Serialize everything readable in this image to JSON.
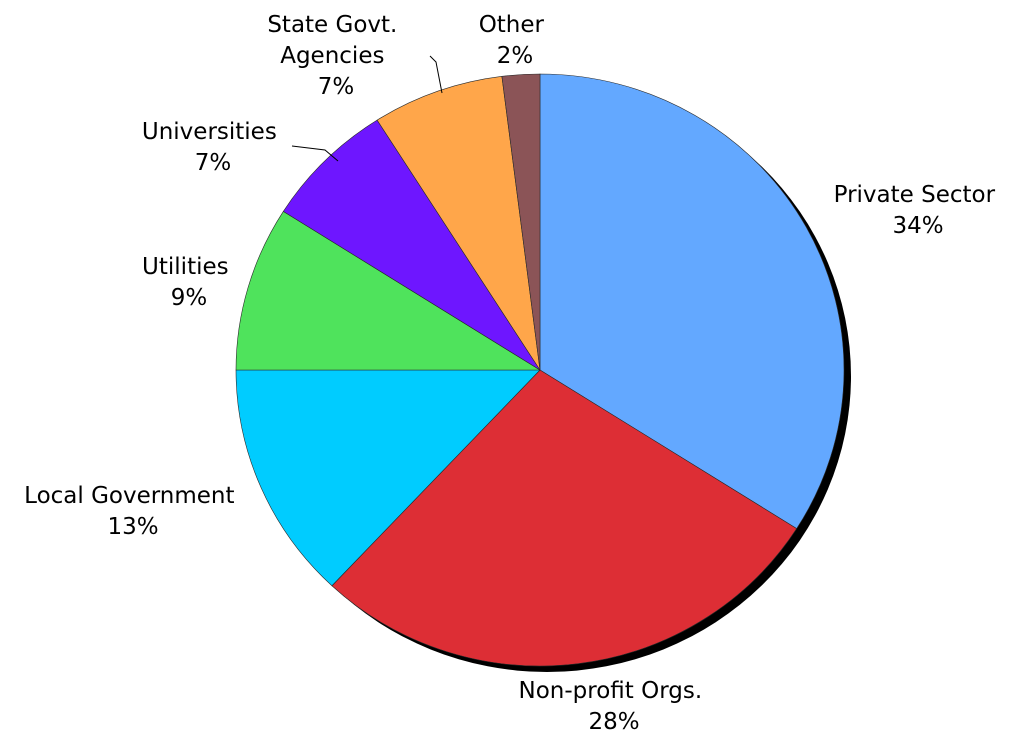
{
  "chart_data": {
    "type": "pie",
    "title": "",
    "start_angle_deg": 0,
    "direction": "clockwise",
    "slices": [
      {
        "label": "Private Sector",
        "percent_label": "34%",
        "value": 34,
        "color": "#63a8ff"
      },
      {
        "label": "Non-profit Orgs.",
        "percent_label": "28%",
        "value": 28,
        "color": "#dd2e35"
      },
      {
        "label": "Local Government",
        "percent_label": "13%",
        "value": 13,
        "color": "#00ccff"
      },
      {
        "label": "Utilities",
        "percent_label": "9%",
        "value": 9,
        "color": "#4fe35c"
      },
      {
        "label": "Universities",
        "percent_label": "7%",
        "value": 7,
        "color": "#6e16ff"
      },
      {
        "label": "State Govt. Agencies",
        "label_lines": [
          "State Govt.",
          "Agencies"
        ],
        "percent_label": "7%",
        "value": 7,
        "color": "#ffa64a"
      },
      {
        "label": "Other",
        "percent_label": "2%",
        "value": 2,
        "color": "#8b5457"
      }
    ],
    "legend": "none",
    "data_labels": "outside"
  }
}
